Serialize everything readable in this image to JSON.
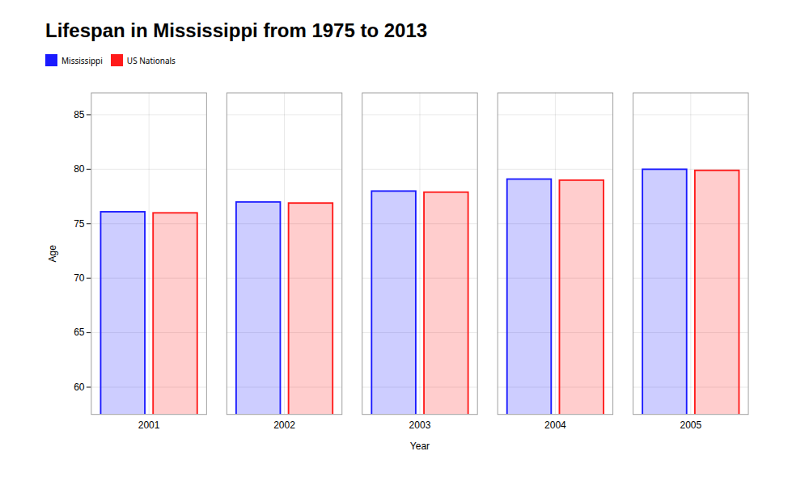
{
  "chart_data": {
    "type": "bar",
    "title": "Lifespan in Mississippi from 1975 to 2013",
    "xlabel": "Year",
    "ylabel": "Age",
    "categories": [
      "2001",
      "2002",
      "2003",
      "2004",
      "2005"
    ],
    "series": [
      {
        "name": "Mississippi",
        "color": "#1a1aff",
        "values": [
          76.2,
          77.1,
          78.1,
          79.2,
          80.1
        ]
      },
      {
        "name": "US Nationals",
        "color": "#ff1a1a",
        "values": [
          76.1,
          77.0,
          78.0,
          79.1,
          80.0
        ]
      }
    ],
    "ylim": [
      57.5,
      87
    ],
    "yticks": [
      60,
      65,
      70,
      75,
      80,
      85
    ],
    "grid": true,
    "legend": "top"
  }
}
